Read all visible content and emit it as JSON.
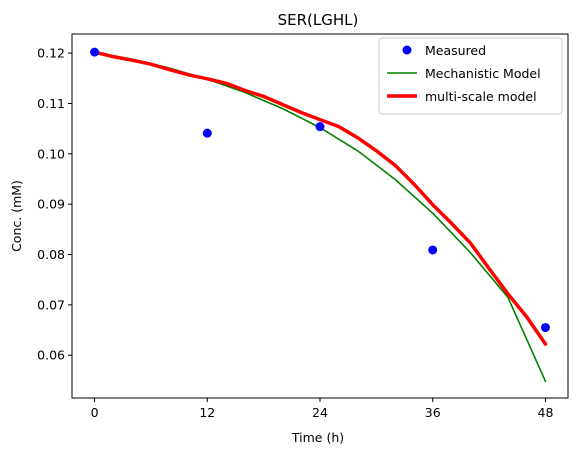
{
  "chart_data": {
    "type": "line",
    "title": "SER(LGHL)",
    "xlabel": "Time (h)",
    "ylabel": "Conc. (mM)",
    "xlim": [
      -2.4,
      50.4
    ],
    "ylim": [
      0.0515,
      0.1238
    ],
    "xticks": [
      0,
      12,
      24,
      36,
      48
    ],
    "xtick_labels": [
      "0",
      "12",
      "24",
      "36",
      "48"
    ],
    "yticks": [
      0.06,
      0.07,
      0.08,
      0.09,
      0.1,
      0.11,
      0.12
    ],
    "ytick_labels": [
      "0.06",
      "0.07",
      "0.08",
      "0.09",
      "0.10",
      "0.11",
      "0.12"
    ],
    "grid": false,
    "legend_position": "top-right",
    "series": [
      {
        "name": "Measured",
        "kind": "scatter",
        "color": "#0000ff",
        "x": [
          0,
          12,
          24,
          36,
          48
        ],
        "y": [
          0.1202,
          0.1041,
          0.1054,
          0.0809,
          0.0655
        ]
      },
      {
        "name": "Mechanistic Model",
        "kind": "line",
        "color": "#008000",
        "x": [
          0,
          4,
          8,
          12,
          16,
          20,
          24,
          28,
          32,
          36,
          40,
          44,
          48
        ],
        "y": [
          0.1202,
          0.1188,
          0.117,
          0.1148,
          0.1122,
          0.109,
          0.1052,
          0.1006,
          0.0949,
          0.0882,
          0.0804,
          0.0715,
          0.0548
        ]
      },
      {
        "name": "multi-scale model",
        "kind": "line",
        "color": "#ff0000",
        "x": [
          0,
          2,
          4,
          6,
          8,
          10,
          12,
          14,
          16,
          18,
          20,
          22,
          24,
          26,
          28,
          30,
          32,
          34,
          36,
          38,
          40,
          42,
          44,
          46,
          48
        ],
        "y": [
          0.1202,
          0.1193,
          0.1186,
          0.1178,
          0.1167,
          0.1157,
          0.1149,
          0.114,
          0.1126,
          0.1114,
          0.1098,
          0.1082,
          0.1068,
          0.1054,
          0.1032,
          0.1006,
          0.0977,
          0.094,
          0.0899,
          0.0862,
          0.0823,
          0.0772,
          0.0722,
          0.0676,
          0.0622
        ]
      }
    ]
  }
}
